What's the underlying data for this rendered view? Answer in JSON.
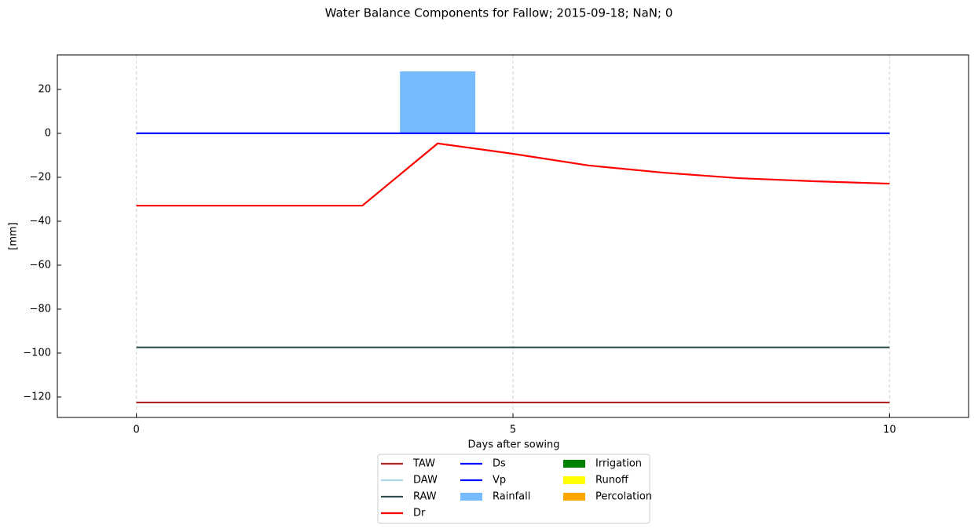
{
  "chart_data": {
    "type": "line",
    "title": "Water Balance Components for Fallow; 2015-09-18; NaN; 0",
    "xlabel": "Days after sowing",
    "ylabel": "[mm]",
    "x": [
      0,
      1,
      2,
      3,
      4,
      5,
      6,
      7,
      8,
      9,
      10
    ],
    "xlim": [
      -1.05,
      11.05
    ],
    "xticks": [
      0,
      5,
      10
    ],
    "ylim": [
      -129.3,
      35.7
    ],
    "yticks": [
      -120,
      -100,
      -80,
      -60,
      -40,
      -20,
      0,
      20
    ],
    "grid": true,
    "legend": "lower center",
    "series": [
      {
        "name": "TAW",
        "type": "line",
        "color": "#b22222",
        "values": [
          -122.5,
          -122.5,
          -122.5,
          -122.5,
          -122.5,
          -122.5,
          -122.5,
          -122.5,
          -122.5,
          -122.5,
          -122.5
        ]
      },
      {
        "name": "DAW",
        "type": "line",
        "color": "#add8e6",
        "values": [
          0,
          0,
          0,
          0,
          0,
          0,
          0,
          0,
          0,
          0,
          0
        ]
      },
      {
        "name": "RAW",
        "type": "line",
        "color": "#2f4f4f",
        "values": [
          -97.4,
          -97.4,
          -97.4,
          -97.4,
          -97.4,
          -97.4,
          -97.4,
          -97.4,
          -97.4,
          -97.4,
          -97.4
        ]
      },
      {
        "name": "Dr",
        "type": "line",
        "color": "#ff0000",
        "values": [
          -32.9,
          -32.9,
          -32.9,
          -32.9,
          -4.6,
          -9.3,
          -14.6,
          -17.9,
          -20.4,
          -21.8,
          -22.9
        ]
      },
      {
        "name": "Ds",
        "type": "line",
        "color": "#0000ff",
        "values": [
          0,
          0,
          0,
          0,
          0,
          0,
          0,
          0,
          0,
          0,
          0
        ]
      },
      {
        "name": "Vp",
        "type": "line",
        "color": "#0000ff",
        "values": [
          0,
          0,
          0,
          0,
          0,
          0,
          0,
          0,
          0,
          0,
          0
        ]
      },
      {
        "name": "Rainfall",
        "type": "bar",
        "color": "#77bbff",
        "values": [
          0,
          0,
          0,
          0,
          28.2,
          0,
          0,
          0,
          0,
          0,
          0
        ]
      },
      {
        "name": "Irrigation",
        "type": "bar",
        "color": "#008000",
        "values": [
          0,
          0,
          0,
          0,
          0,
          0,
          0,
          0,
          0,
          0,
          0
        ]
      },
      {
        "name": "Runoff",
        "type": "bar",
        "color": "#ffff00",
        "values": [
          0,
          0,
          0,
          0,
          0,
          0,
          0,
          0,
          0,
          0,
          0
        ]
      },
      {
        "name": "Percolation",
        "type": "bar",
        "color": "#ffa500",
        "values": [
          0,
          0,
          0,
          0,
          0,
          0,
          0,
          0,
          0,
          0,
          0
        ]
      }
    ]
  }
}
